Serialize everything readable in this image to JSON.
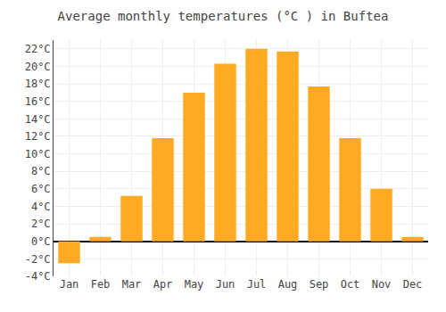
{
  "chart_data": {
    "type": "bar",
    "title": "Average monthly temperatures (°C ) in Buftea",
    "categories": [
      "Jan",
      "Feb",
      "Mar",
      "Apr",
      "May",
      "Jun",
      "Jul",
      "Aug",
      "Sep",
      "Oct",
      "Nov",
      "Dec"
    ],
    "values": [
      -2.5,
      0.5,
      5.2,
      11.8,
      17.0,
      20.3,
      22.0,
      21.7,
      17.7,
      11.8,
      6.0,
      0.5
    ],
    "color": "#FFAA22",
    "ylim": [
      -4,
      23
    ],
    "yticks": [
      {
        "value": -4,
        "label": "-4°C"
      },
      {
        "value": -2,
        "label": "-2°C"
      },
      {
        "value": 0,
        "label": "0°C"
      },
      {
        "value": 2,
        "label": "2°C"
      },
      {
        "value": 4,
        "label": "4°C"
      },
      {
        "value": 6,
        "label": "6°C"
      },
      {
        "value": 8,
        "label": "8°C"
      },
      {
        "value": 10,
        "label": "10°C"
      },
      {
        "value": 12,
        "label": "12°C"
      },
      {
        "value": 14,
        "label": "14°C"
      },
      {
        "value": 16,
        "label": "16°C"
      },
      {
        "value": 18,
        "label": "18°C"
      },
      {
        "value": 20,
        "label": "20°C"
      },
      {
        "value": 22,
        "label": "22°C"
      }
    ],
    "grid": true
  }
}
